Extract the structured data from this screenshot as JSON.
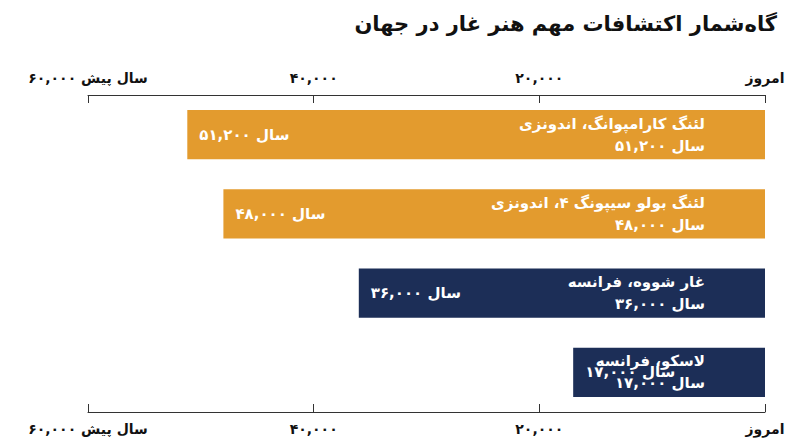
{
  "chart_data": {
    "type": "bar",
    "orientation": "horizontal",
    "title": "گاه‌شمار اکتشافات مهم هنر غار در جهان",
    "categories": [
      "لئنگ کارامپوانگ، اندونزی",
      "لئنگ بولو سیپونگ ۴، اندونزی",
      "غار شووه، فرانسه",
      "لاسکو، فرانسه"
    ],
    "values": [
      51200,
      48000,
      36000,
      17000
    ],
    "value_labels": [
      "۵۱,۲۰۰ سال",
      "۴۸,۰۰۰ سال",
      "۳۶,۰۰۰ سال",
      "۱۷,۰۰۰ سال"
    ],
    "colors": [
      "#E39B2E",
      "#E39B2E",
      "#1C2E57",
      "#1C2E57"
    ],
    "xlim": [
      0,
      60000
    ],
    "xticks": [
      {
        "value": 0,
        "label": "امروز"
      },
      {
        "value": 20000,
        "label": "۲۰,۰۰۰"
      },
      {
        "value": 40000,
        "label": "۴۰,۰۰۰"
      },
      {
        "value": 60000,
        "label": "۶۰,۰۰۰ سال پیش"
      }
    ],
    "grid": false,
    "data_labels": true
  }
}
